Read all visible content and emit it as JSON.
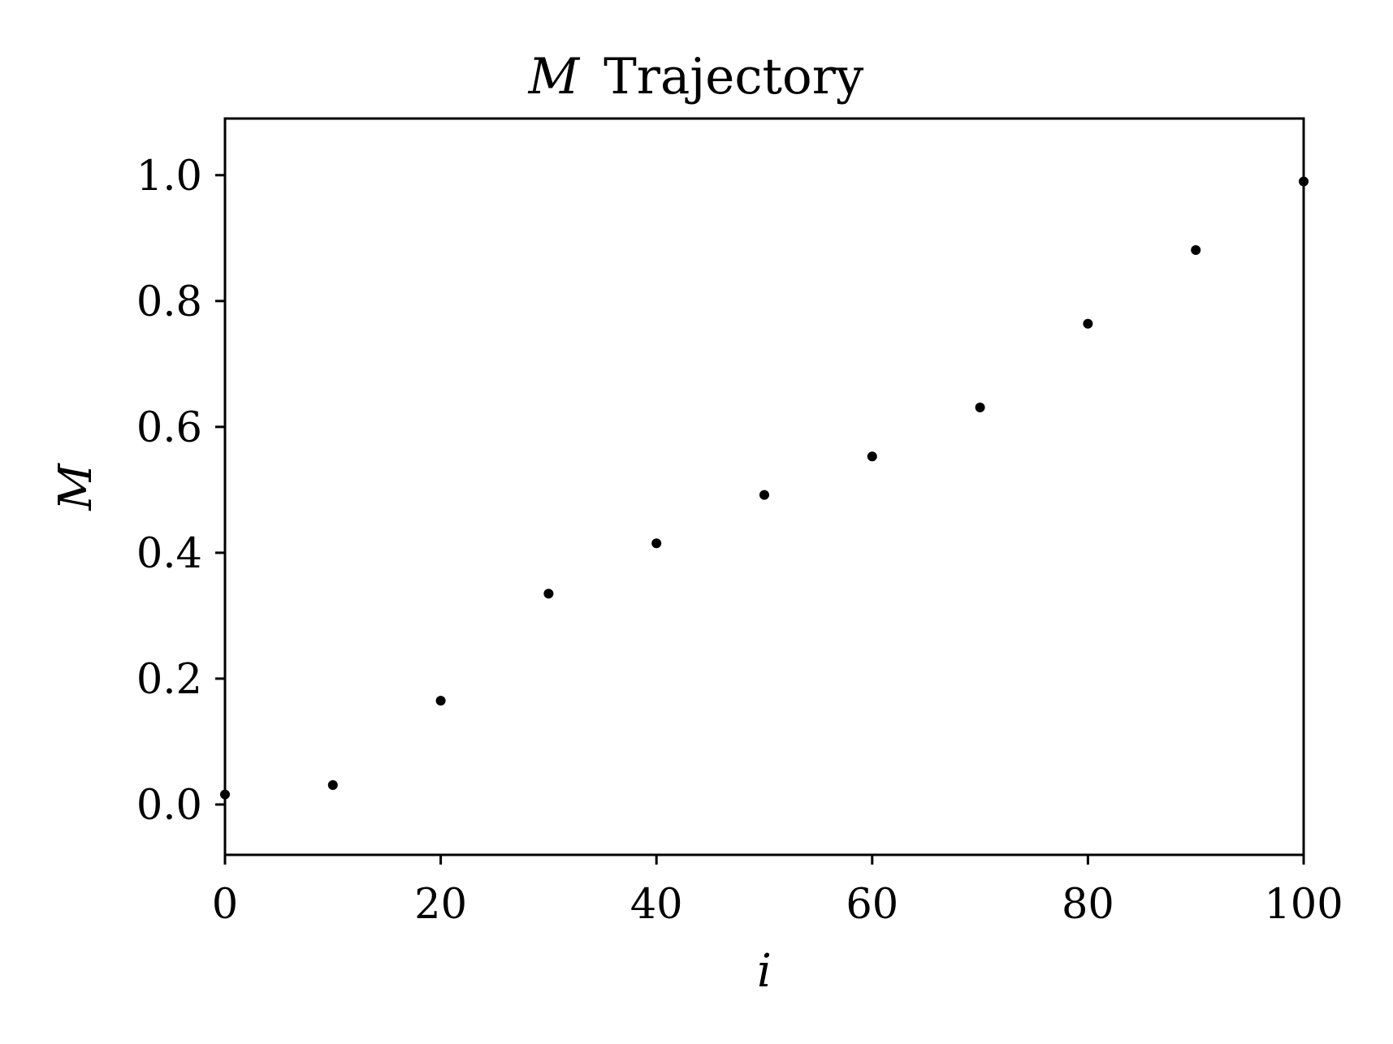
{
  "chart_data": {
    "type": "scatter",
    "title_symbol": "M",
    "title_text": "Trajectory",
    "xlabel": "i",
    "ylabel": "M",
    "xlim": [
      0,
      100
    ],
    "ylim": [
      -0.08,
      1.09
    ],
    "xticks": [
      0,
      20,
      40,
      60,
      80,
      100
    ],
    "xtick_labels": [
      "0",
      "20",
      "40",
      "60",
      "80",
      "100"
    ],
    "yticks": [
      0.0,
      0.2,
      0.4,
      0.6,
      0.8,
      1.0
    ],
    "ytick_labels": [
      "0.0",
      "0.2",
      "0.4",
      "0.6",
      "0.8",
      "1.0"
    ],
    "grid": false,
    "marker_color": "#000000",
    "series": [
      {
        "x": [
          0,
          10,
          20,
          30,
          40,
          50,
          60,
          70,
          80,
          90,
          100
        ],
        "y": [
          0.016,
          0.031,
          0.165,
          0.335,
          0.415,
          0.492,
          0.553,
          0.631,
          0.764,
          0.881,
          0.99
        ]
      }
    ]
  }
}
